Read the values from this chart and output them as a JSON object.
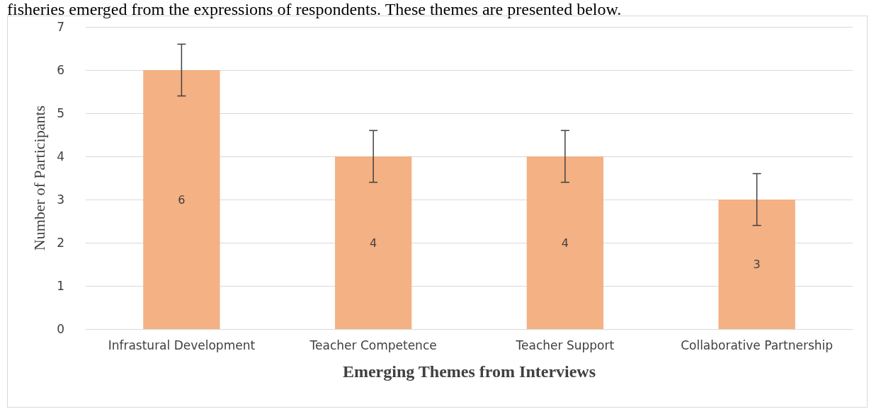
{
  "chart_data": {
    "type": "bar",
    "xlabel": "Emerging Themes from Interviews",
    "ylabel": "Number of Participants",
    "annotations": [
      "fisheries emerged from the expressions of respondents. These themes are presented below."
    ],
    "categories": [
      "Infrastural Development",
      "Teacher Competence",
      "Teacher Support",
      "Collaborative Partnership"
    ],
    "values": [
      6,
      4,
      4,
      3
    ],
    "errors": [
      0.6,
      0.6,
      0.6,
      0.6
    ],
    "color": "#f4b183",
    "ylim": [
      0,
      7
    ],
    "yticks": [
      0,
      1,
      2,
      3,
      4,
      5,
      6,
      7
    ],
    "grid": "y",
    "data_labels": true
  }
}
